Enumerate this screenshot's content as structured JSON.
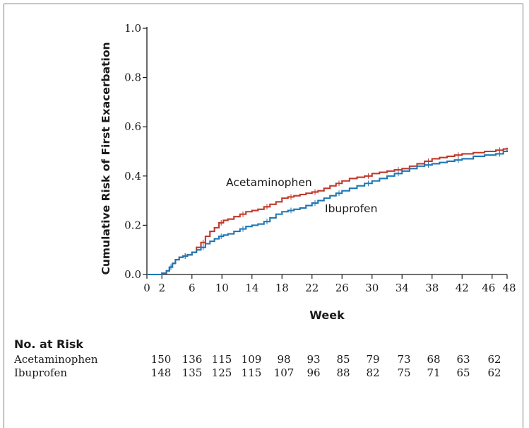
{
  "chart_data": {
    "type": "line",
    "xlabel": "Week",
    "ylabel": "Cumulative Risk of First Exacerbation",
    "xlim": [
      0,
      48
    ],
    "ylim": [
      0,
      1.0
    ],
    "x_ticks": [
      0,
      2,
      6,
      10,
      14,
      18,
      22,
      26,
      30,
      34,
      38,
      42,
      46,
      48
    ],
    "y_ticks": [
      0.0,
      0.2,
      0.4,
      0.6,
      0.8,
      1.0
    ],
    "y_tick_labels": [
      "0.0",
      "0.2",
      "0.4",
      "0.6",
      "0.8",
      "1.0"
    ],
    "grid": false,
    "series": [
      {
        "name": "Acetaminophen",
        "color": "#c0392b",
        "x": [
          0,
          2.0,
          2.6,
          3.0,
          3.4,
          3.8,
          4.3,
          4.8,
          5.4,
          6.0,
          6.6,
          7.2,
          7.8,
          8.4,
          9.0,
          9.6,
          10.2,
          10.8,
          11.6,
          12.4,
          13.2,
          14.0,
          14.8,
          15.6,
          16.4,
          17.2,
          18.0,
          18.8,
          19.6,
          20.4,
          21.2,
          22.0,
          22.8,
          23.6,
          24.4,
          25.2,
          26.0,
          27.0,
          28.0,
          29.0,
          30.0,
          31.0,
          32.0,
          33.0,
          34.0,
          35.0,
          36.0,
          37.0,
          38.0,
          39.0,
          40.0,
          41.0,
          42.0,
          43.5,
          45.0,
          46.5,
          47.5,
          48.0
        ],
        "y": [
          0.0,
          0.005,
          0.015,
          0.03,
          0.045,
          0.06,
          0.07,
          0.075,
          0.08,
          0.09,
          0.11,
          0.13,
          0.155,
          0.175,
          0.19,
          0.21,
          0.22,
          0.225,
          0.235,
          0.245,
          0.255,
          0.26,
          0.265,
          0.275,
          0.285,
          0.295,
          0.31,
          0.315,
          0.32,
          0.325,
          0.33,
          0.335,
          0.34,
          0.35,
          0.36,
          0.37,
          0.38,
          0.39,
          0.395,
          0.4,
          0.41,
          0.415,
          0.42,
          0.425,
          0.43,
          0.44,
          0.45,
          0.46,
          0.47,
          0.475,
          0.48,
          0.485,
          0.49,
          0.495,
          0.5,
          0.505,
          0.51,
          0.515
        ]
      },
      {
        "name": "Ibuprofen",
        "color": "#1f77b4",
        "x": [
          0,
          2.0,
          2.6,
          3.0,
          3.4,
          3.8,
          4.3,
          4.8,
          5.4,
          6.0,
          6.6,
          7.2,
          7.8,
          8.4,
          9.0,
          9.6,
          10.2,
          10.8,
          11.6,
          12.4,
          13.2,
          14.0,
          14.8,
          15.6,
          16.4,
          17.2,
          18.0,
          18.8,
          19.6,
          20.4,
          21.2,
          22.0,
          22.8,
          23.6,
          24.4,
          25.2,
          26.0,
          27.0,
          28.0,
          29.0,
          30.0,
          31.0,
          32.0,
          33.0,
          34.0,
          35.0,
          36.0,
          37.0,
          38.0,
          39.0,
          40.0,
          41.0,
          42.0,
          43.5,
          45.0,
          46.5,
          47.5,
          48.0
        ],
        "y": [
          0.0,
          0.005,
          0.015,
          0.03,
          0.045,
          0.06,
          0.07,
          0.075,
          0.08,
          0.09,
          0.1,
          0.11,
          0.125,
          0.135,
          0.145,
          0.155,
          0.16,
          0.165,
          0.175,
          0.185,
          0.195,
          0.2,
          0.205,
          0.215,
          0.23,
          0.245,
          0.255,
          0.26,
          0.265,
          0.27,
          0.28,
          0.29,
          0.3,
          0.31,
          0.32,
          0.33,
          0.34,
          0.35,
          0.36,
          0.37,
          0.38,
          0.39,
          0.4,
          0.41,
          0.42,
          0.43,
          0.44,
          0.445,
          0.45,
          0.455,
          0.46,
          0.465,
          0.47,
          0.48,
          0.485,
          0.49,
          0.5,
          0.505
        ]
      }
    ],
    "annotations": [
      {
        "text": "Acetaminophen",
        "series": "Acetaminophen"
      },
      {
        "text": "Ibuprofen",
        "series": "Ibuprofen"
      }
    ]
  },
  "risk_table": {
    "title": "No. at Risk",
    "rows": [
      {
        "label": "Acetaminophen",
        "values": [
          "150",
          "136",
          "115",
          "109",
          "98",
          "93",
          "85",
          "79",
          "73",
          "68",
          "63",
          "62"
        ]
      },
      {
        "label": "Ibuprofen",
        "values": [
          "148",
          "135",
          "125",
          "115",
          "107",
          "96",
          "88",
          "82",
          "75",
          "71",
          "65",
          "62"
        ]
      }
    ]
  }
}
